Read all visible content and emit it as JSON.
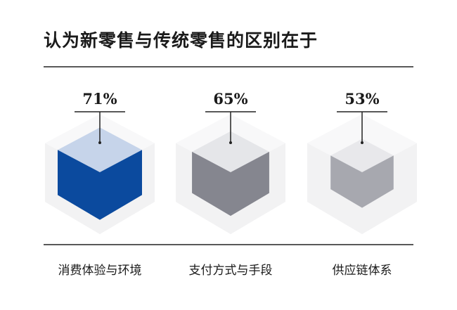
{
  "chart_data": {
    "type": "bar",
    "title": "认为新零售与传统零售的区别在于",
    "categories": [
      "消费体验与环境",
      "支付方式与手段",
      "供应链体系"
    ],
    "values": [
      71,
      65,
      53
    ],
    "value_labels": [
      "71%",
      "65%",
      "53%"
    ],
    "ylim": [
      0,
      100
    ],
    "grid": false,
    "legend": "none",
    "colors": {
      "top_faces": [
        "#c6d4ea",
        "#e5e6e9",
        "#e8e8eb"
      ],
      "side_faces": [
        "#0b4a9e",
        "#85868f",
        "#a7a8af"
      ],
      "background_hex": "#f2f2f3",
      "background_hex_top": "#f8f8f9",
      "text": "#1a1a1a"
    }
  }
}
